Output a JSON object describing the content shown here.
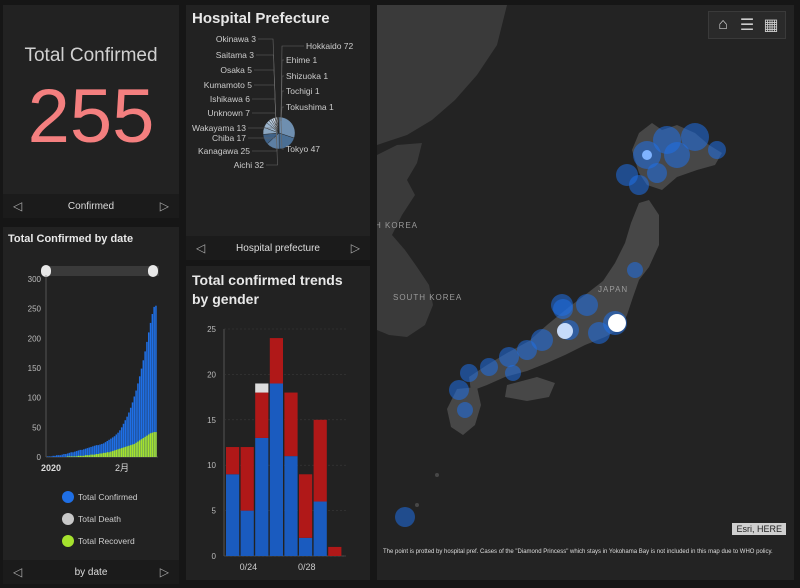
{
  "total_panel": {
    "title": "Total Confirmed",
    "value": "255",
    "pager_label": "Confirmed"
  },
  "prefecture_panel": {
    "title": "Hospital Prefecture",
    "pager_label": "Hospital prefecture",
    "labels_left": [
      "Okinawa 3",
      "Saitama 3",
      "Osaka 5",
      "Kumamoto 5",
      "Ishikawa 6",
      "Unknown 7",
      "Wakayama 13",
      "Chiba 17",
      "Kanagawa 25",
      "Aichi 32"
    ],
    "labels_right": [
      "Hokkaido 72",
      "Ehime 1",
      "Shizuoka 1",
      "Tochigi 1",
      "Tokushima 1",
      "Tokyo 47"
    ]
  },
  "date_panel": {
    "title": "Total Confirmed by date",
    "pager_label": "by date",
    "y_ticks": [
      "300",
      "250",
      "200",
      "150",
      "100",
      "50",
      "0"
    ],
    "x_ticks": [
      "2020",
      "2月"
    ],
    "legend": [
      {
        "label": "Total Confirmed",
        "color": "#1f6fe5"
      },
      {
        "label": "Total Death",
        "color": "#c8c8c8"
      },
      {
        "label": "Total Recoverd",
        "color": "#a6e22e"
      }
    ]
  },
  "gender_panel": {
    "title_line1": "Total confirmed trends",
    "title_line2": "by gender",
    "y_ticks": [
      "25",
      "20",
      "15",
      "10",
      "5",
      "0"
    ],
    "x_ticks": [
      "0/24",
      "0/28"
    ]
  },
  "chart_data": [
    {
      "type": "pie",
      "title": "Hospital Prefecture",
      "categories": [
        "Hokkaido",
        "Tokyo",
        "Aichi",
        "Kanagawa",
        "Chiba",
        "Wakayama",
        "Unknown",
        "Ishikawa",
        "Kumamoto",
        "Osaka",
        "Saitama",
        "Okinawa",
        "Ehime",
        "Shizuoka",
        "Tochigi",
        "Tokushima"
      ],
      "values": [
        72,
        47,
        32,
        25,
        17,
        13,
        7,
        6,
        5,
        5,
        3,
        3,
        1,
        1,
        1,
        1
      ]
    },
    {
      "type": "bar",
      "title": "Total Confirmed by date",
      "ylim": [
        0,
        300
      ],
      "confirmed": [
        1,
        1,
        1,
        2,
        2,
        3,
        3,
        3,
        4,
        5,
        5,
        6,
        7,
        8,
        8,
        9,
        10,
        11,
        12,
        12,
        13,
        14,
        15,
        16,
        17,
        18,
        19,
        20,
        20,
        21,
        22,
        23,
        25,
        27,
        29,
        31,
        33,
        35,
        38,
        41,
        45,
        50,
        56,
        62,
        68,
        75,
        83,
        92,
        102,
        112,
        124,
        136,
        149,
        163,
        178,
        194,
        210,
        226,
        241,
        253,
        255
      ],
      "recovered": [
        0,
        0,
        0,
        0,
        0,
        0,
        0,
        0,
        0,
        0,
        0,
        1,
        1,
        1,
        1,
        1,
        1,
        2,
        2,
        2,
        2,
        3,
        3,
        3,
        4,
        4,
        4,
        5,
        5,
        6,
        6,
        7,
        7,
        8,
        8,
        9,
        10,
        11,
        12,
        13,
        14,
        15,
        16,
        17,
        18,
        19,
        20,
        21,
        22,
        24,
        26,
        28,
        30,
        32,
        34,
        36,
        38,
        40,
        41,
        42,
        42
      ],
      "deaths": [
        0,
        0,
        0,
        0,
        0,
        0,
        0,
        0,
        0,
        0,
        0,
        0,
        0,
        0,
        0,
        0,
        0,
        0,
        0,
        0,
        0,
        0,
        0,
        0,
        0,
        0,
        0,
        0,
        0,
        0,
        0,
        0,
        0,
        0,
        0,
        0,
        0,
        0,
        0,
        0,
        0,
        0,
        0,
        0,
        0,
        0,
        1,
        1,
        1,
        1,
        1,
        1,
        1,
        1,
        1,
        1,
        1,
        1,
        1,
        1,
        1
      ]
    },
    {
      "type": "bar",
      "title": "Total confirmed trends by gender",
      "ylim": [
        0,
        25
      ],
      "series": [
        {
          "color": "#1a5bbf",
          "values": [
            9,
            5,
            13,
            19,
            11,
            2,
            6,
            0
          ]
        },
        {
          "color": "#b01818",
          "values": [
            3,
            7,
            5,
            5,
            7,
            7,
            9,
            1
          ]
        },
        {
          "color": "#dddddd",
          "values": [
            0,
            0,
            1,
            0,
            0,
            0,
            0,
            0
          ]
        }
      ]
    }
  ],
  "map": {
    "labels": {
      "korea": "H KOREA",
      "south_korea": "SOUTH KOREA",
      "japan": "JAPAN"
    },
    "attribution": "Esri, HERE",
    "footnote": "The point is protted by hospital pref. Cases of the \"Diamond Princess\" which stays in Yokohama Bay is not included in this map due to WHO policy.",
    "buttons": [
      "home-icon",
      "layers-list-icon",
      "qr-grid-icon"
    ]
  }
}
